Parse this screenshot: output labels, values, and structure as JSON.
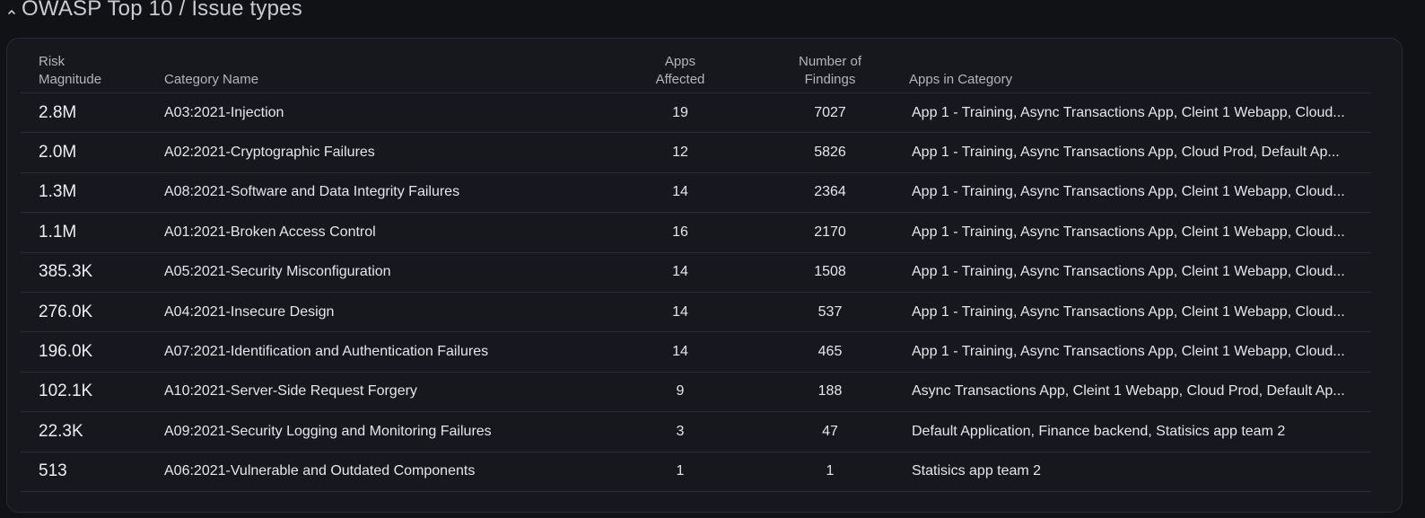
{
  "section": {
    "title": "OWASP Top 10 / Issue types"
  },
  "table": {
    "headers": {
      "risk_line1": "Risk",
      "risk_line2": "Magnitude",
      "category": "Category Name",
      "apps_line1": "Apps",
      "apps_line2": "Affected",
      "findings_line1": "Number of",
      "findings_line2": "Findings",
      "apps_list": "Apps in Category"
    },
    "rows": [
      {
        "risk": "2.8M",
        "category": "A03:2021-Injection",
        "apps": "19",
        "findings": "7027",
        "apps_list": "App 1 - Training, Async Transactions App, Cleint 1 Webapp, Cloud..."
      },
      {
        "risk": "2.0M",
        "category": "A02:2021-Cryptographic Failures",
        "apps": "12",
        "findings": "5826",
        "apps_list": "App 1 - Training, Async Transactions App, Cloud Prod, Default Ap..."
      },
      {
        "risk": "1.3M",
        "category": "A08:2021-Software and Data Integrity Failures",
        "apps": "14",
        "findings": "2364",
        "apps_list": "App 1 - Training, Async Transactions App, Cleint 1 Webapp, Cloud..."
      },
      {
        "risk": "1.1M",
        "category": "A01:2021-Broken Access Control",
        "apps": "16",
        "findings": "2170",
        "apps_list": "App 1 - Training, Async Transactions App, Cleint 1 Webapp, Cloud..."
      },
      {
        "risk": "385.3K",
        "category": "A05:2021-Security Misconfiguration",
        "apps": "14",
        "findings": "1508",
        "apps_list": "App 1 - Training, Async Transactions App, Cleint 1 Webapp, Cloud..."
      },
      {
        "risk": "276.0K",
        "category": "A04:2021-Insecure Design",
        "apps": "14",
        "findings": "537",
        "apps_list": "App 1 - Training, Async Transactions App, Cleint 1 Webapp, Cloud..."
      },
      {
        "risk": "196.0K",
        "category": "A07:2021-Identification and Authentication Failures",
        "apps": "14",
        "findings": "465",
        "apps_list": "App 1 - Training, Async Transactions App, Cleint 1 Webapp, Cloud..."
      },
      {
        "risk": "102.1K",
        "category": "A10:2021-Server-Side Request Forgery",
        "apps": "9",
        "findings": "188",
        "apps_list": "Async Transactions App, Cleint 1 Webapp, Cloud Prod, Default Ap..."
      },
      {
        "risk": "22.3K",
        "category": "A09:2021-Security Logging and Monitoring Failures",
        "apps": "3",
        "findings": "47",
        "apps_list": "Default Application, Finance backend, Statisics app team 2"
      },
      {
        "risk": "513",
        "category": "A06:2021-Vulnerable and Outdated Components",
        "apps": "1",
        "findings": "1",
        "apps_list": "Statisics app team 2"
      }
    ]
  },
  "icons": {
    "collapse": "chevron-up-icon"
  }
}
